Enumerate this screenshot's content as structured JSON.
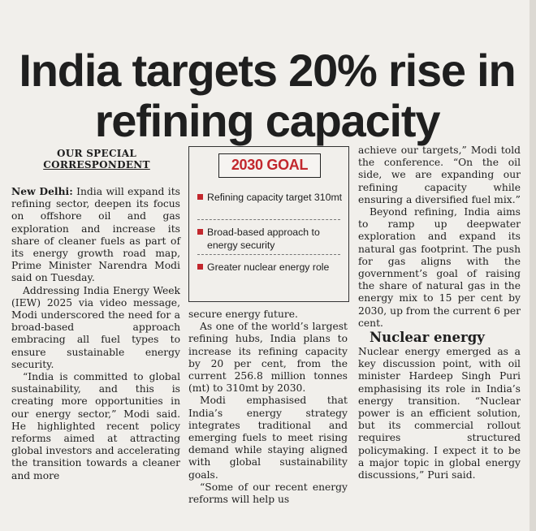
{
  "headline": "India targets 20% rise in refining capacity",
  "byline": [
    "OUR SPECIAL",
    "CORRESPONDENT"
  ],
  "box": {
    "title": "2030 GOAL",
    "items": [
      "Refining capacity target 310mt",
      "Broad-based approach to energy security",
      "Greater nuclear energy role"
    ]
  },
  "article": {
    "dateline": "New Delhi:",
    "col1_paragraphs": [
      "India will expand its refining sector, deepen its focus on offshore oil and gas exploration and increase its share of cleaner fuels as part of its energy growth road map, Prime Minister Narendra Modi said on Tuesday.",
      "Addressing India Energy Week (IEW) 2025 via video message, Modi underscored the need for a broad-based approach embracing all fuel types to ensure sustainable energy security.",
      "“India is committed to global sustainability, and this is creating more opportunities in our energy sector,” Modi said. He highlighted recent policy reforms aimed at attracting global investors and accelerating the transition towards a cleaner and more"
    ],
    "col2_paragraphs": [
      "secure energy future.",
      "As one of the world’s largest refining hubs, India plans to increase its refining capacity by 20 per cent, from the current 256.8 million tonnes (mt) to 310mt by 2030.",
      "Modi emphasised that India’s energy strategy integrates traditional and emerging fuels to meet rising demand while staying aligned with global sustainability goals.",
      "“Some of our recent energy reforms will help us"
    ],
    "col3_paragraphs": [
      "achieve our targets,” Modi told the conference. “On the oil side, we are expanding our refining capacity while ensuring a diversified fuel mix.”",
      "Beyond refining, India aims to ramp up deepwater exploration and expand its natural gas footprint. The push for gas aligns with the government’s goal of raising the share of natural gas in the energy mix to 15 per cent by 2030, up from the current 6 per cent."
    ],
    "subhead": "Nuclear energy",
    "col3_after_subhead": [
      "Nuclear energy emerged as a key discussion point, with oil minister Hardeep Singh Puri emphasising its role in India’s energy transition. “Nuclear power is an efficient solution, but its commercial rollout requires structured policymaking. I expect it to be a major topic in global energy discussions,” Puri said."
    ]
  },
  "colors": {
    "accent": "#c2272d",
    "paper": "#f1efeb",
    "ink": "#1e1e1e"
  }
}
